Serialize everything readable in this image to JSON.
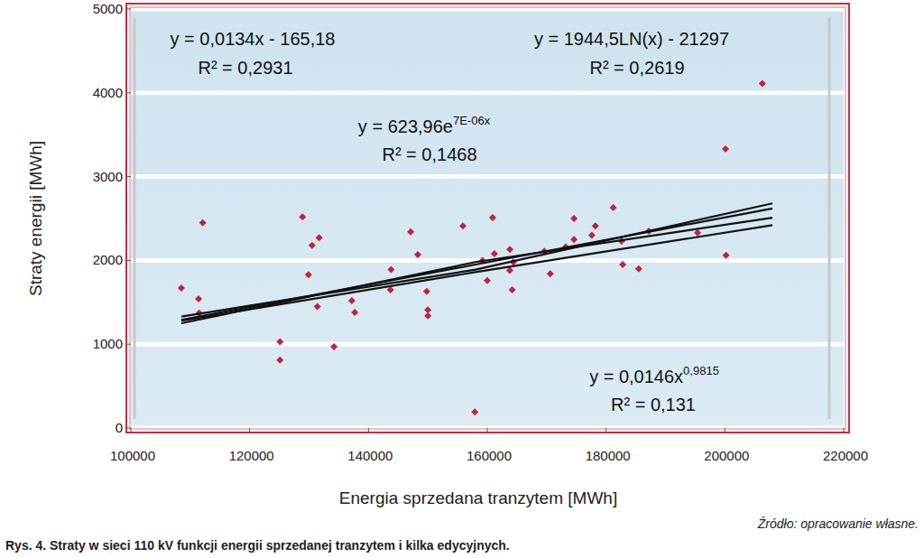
{
  "chart_data": {
    "type": "scatter",
    "title": "Rys. 4. Straty w sieci 110 kV funkcji energii sprzedanej tranzytem i kilka edycyjnych.",
    "source": "Źródło: opracowanie własne.",
    "x_label": "Energia sprzedana tranzytem [MWh]",
    "y_label": "Straty energii [MWh]",
    "xlim": [
      100000,
      220000
    ],
    "xticks": [
      100000,
      120000,
      140000,
      160000,
      180000,
      200000,
      220000
    ],
    "ylim": [
      0,
      5000
    ],
    "yticks": [
      0,
      1000,
      2000,
      3000,
      4000,
      5000
    ],
    "grid": true,
    "series": [
      {
        "type": "scatter",
        "color": "#c0243a",
        "marker": "diamond",
        "x": [
          108500,
          111400,
          111500,
          112100,
          125100,
          125100,
          128900,
          129900,
          130500,
          131700,
          131400,
          134200,
          137200,
          137700,
          143700,
          143800,
          147100,
          148300,
          149800,
          150000,
          150000,
          155900,
          157900,
          159200,
          160000,
          160900,
          161200,
          163800,
          163800,
          164200,
          164400,
          169600,
          170600,
          173200,
          174600,
          174600,
          177600,
          178200,
          181200,
          182600,
          182800,
          185500,
          187200,
          195400,
          200100,
          200200,
          206300
        ],
        "values": [
          1670,
          1540,
          1370,
          2450,
          1030,
          810,
          2520,
          1830,
          2180,
          2270,
          1450,
          970,
          1520,
          1380,
          1650,
          1890,
          2340,
          2070,
          1630,
          1410,
          1340,
          2410,
          190,
          2000,
          1760,
          2510,
          2080,
          2130,
          1880,
          1650,
          1980,
          2110,
          1840,
          2160,
          2500,
          2250,
          2300,
          2410,
          2630,
          2230,
          1950,
          1900,
          2350,
          2330,
          3330,
          2060,
          4110
        ]
      },
      {
        "type": "line",
        "color": "#111111",
        "x": [
          108500,
          158000,
          208000
        ],
        "values": [
          1290,
          1950,
          2620
        ]
      },
      {
        "type": "line",
        "color": "#111111",
        "x": [
          108500,
          158000,
          208000
        ],
        "values": [
          1250,
          1980,
          2510
        ]
      },
      {
        "type": "line",
        "color": "#111111",
        "x": [
          108500,
          158000,
          208000
        ],
        "values": [
          1330,
          1890,
          2680
        ]
      },
      {
        "type": "line",
        "color": "#111111",
        "x": [
          108500,
          158000,
          208000
        ],
        "values": [
          1280,
          1860,
          2420
        ]
      }
    ],
    "annotations": [
      {
        "text": "y = 0,0134x - 165,18"
      },
      {
        "text": "R² = 0,2931"
      },
      {
        "text": "y = 1944,5LN(x) - 21297"
      },
      {
        "text": "R² = 0,2619"
      },
      {
        "text": "y = 623,96e",
        "sup": "7E-06x"
      },
      {
        "text": "R² = 0,1468"
      },
      {
        "text": "y = 0,0146x",
        "sup": "0,9815"
      },
      {
        "text": "R² = 0,131"
      }
    ]
  }
}
